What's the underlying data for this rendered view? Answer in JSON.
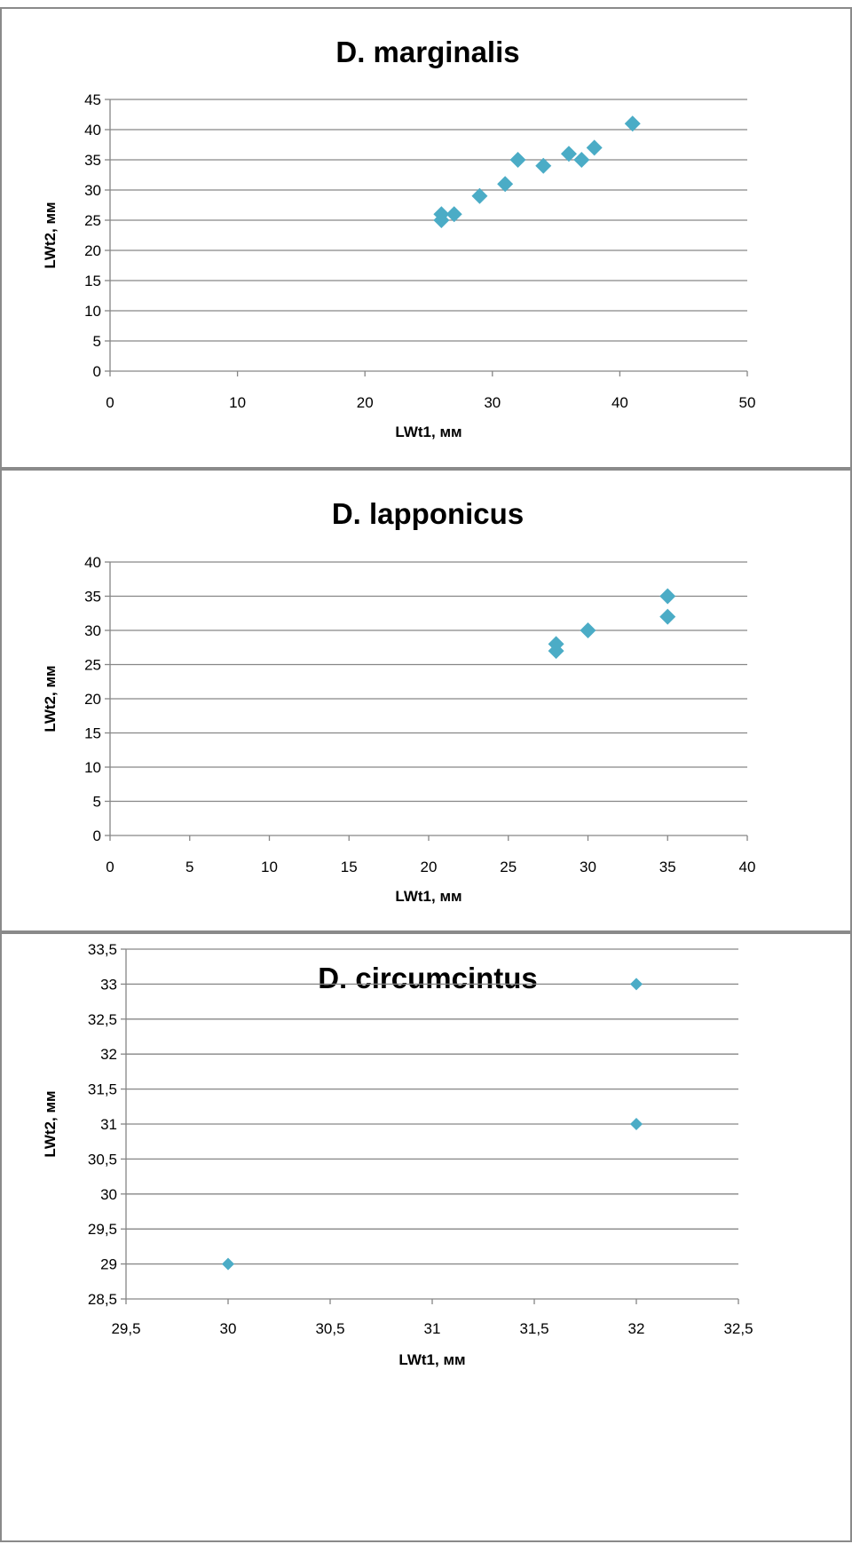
{
  "colors": {
    "marker": "#4BACC6",
    "grid": "#868686",
    "axis": "#868686",
    "text": "#000000",
    "border": "#8a8a8a"
  },
  "chart_data": [
    {
      "type": "scatter",
      "title": "D. marginalis",
      "xlabel": "LWt1, мм",
      "ylabel": "LWt2, мм",
      "xlim": [
        0,
        50
      ],
      "ylim": [
        0,
        45
      ],
      "xticks": [
        "0",
        "10",
        "20",
        "30",
        "40",
        "50"
      ],
      "yticks": [
        "0",
        "5",
        "10",
        "15",
        "20",
        "25",
        "30",
        "35",
        "40",
        "45"
      ],
      "grid": "horizontal",
      "legend": "none",
      "points": [
        [
          26,
          25
        ],
        [
          26,
          26
        ],
        [
          27,
          26
        ],
        [
          29,
          29
        ],
        [
          31,
          31
        ],
        [
          32,
          35
        ],
        [
          34,
          34
        ],
        [
          36,
          36
        ],
        [
          37,
          35
        ],
        [
          38,
          37
        ],
        [
          41,
          41
        ]
      ]
    },
    {
      "type": "scatter",
      "title": "D. lapponicus",
      "xlabel": "LWt1, мм",
      "ylabel": "LWt2, мм",
      "xlim": [
        0,
        40
      ],
      "ylim": [
        0,
        40
      ],
      "xticks": [
        "0",
        "5",
        "10",
        "15",
        "20",
        "25",
        "30",
        "35",
        "40"
      ],
      "yticks": [
        "0",
        "5",
        "10",
        "15",
        "20",
        "25",
        "30",
        "35",
        "40"
      ],
      "grid": "horizontal",
      "legend": "none",
      "points": [
        [
          28,
          27
        ],
        [
          28,
          28
        ],
        [
          30,
          30
        ],
        [
          35,
          32
        ],
        [
          35,
          35
        ]
      ]
    },
    {
      "type": "scatter",
      "title": "D. circumcintus",
      "xlabel": "LWt1, мм",
      "ylabel": "LWt2, мм",
      "xlim": [
        29.5,
        32.5
      ],
      "ylim": [
        28.5,
        33.5
      ],
      "xticks": [
        "29,5",
        "30",
        "30,5",
        "31",
        "31,5",
        "32",
        "32,5"
      ],
      "yticks": [
        "28,5",
        "29",
        "29,5",
        "30",
        "30,5",
        "31",
        "31,5",
        "32",
        "32,5",
        "33",
        "33,5"
      ],
      "grid": "horizontal",
      "legend": "none",
      "points": [
        [
          30,
          29
        ],
        [
          32,
          31
        ],
        [
          32,
          33
        ]
      ]
    }
  ]
}
